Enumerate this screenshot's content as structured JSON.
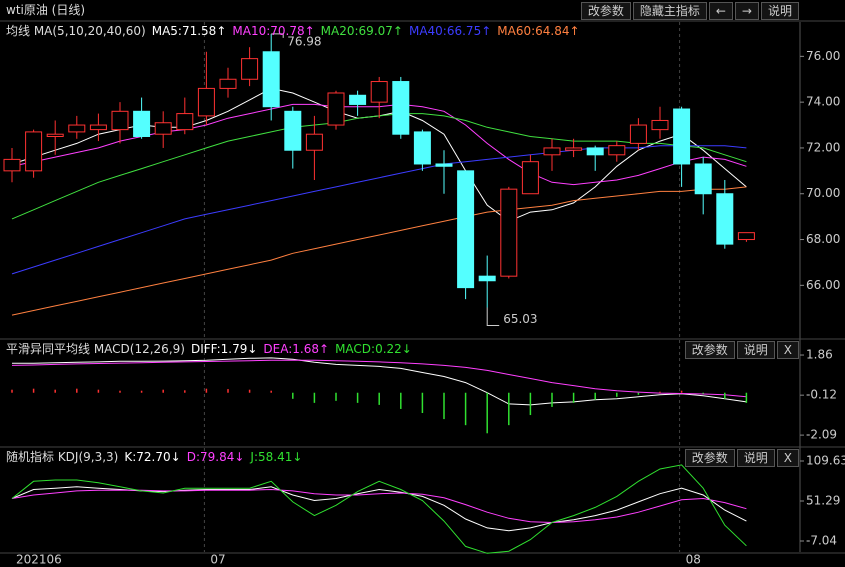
{
  "toolbar": {
    "buttons": [
      "改参数",
      "隐藏主指标",
      "←",
      "→",
      "说明"
    ]
  },
  "chart_data": [
    {
      "type": "candlestick",
      "title": "wti原油 (日线)",
      "indicator": "均线 MA(5,10,20,40,60)",
      "categories": [
        "202106",
        null,
        null,
        null,
        null,
        null,
        null,
        null,
        null,
        "07",
        null,
        null,
        null,
        null,
        null,
        null,
        null,
        null,
        null,
        null,
        null,
        null,
        null,
        null,
        null,
        null,
        null,
        null,
        null,
        null,
        null,
        "08",
        null,
        null,
        null
      ],
      "open": [
        71.0,
        71.0,
        72.5,
        72.7,
        72.8,
        72.8,
        73.6,
        72.6,
        72.8,
        73.4,
        74.6,
        75.0,
        76.2,
        73.6,
        71.9,
        73.0,
        74.3,
        74.0,
        74.9,
        72.7,
        71.3,
        71.0,
        66.4,
        66.4,
        70.0,
        71.7,
        71.9,
        72.0,
        71.7,
        72.2,
        72.8,
        73.7,
        71.3,
        70.0,
        68.0
      ],
      "high": [
        72.0,
        72.8,
        73.2,
        73.4,
        73.5,
        74.0,
        74.2,
        73.6,
        74.2,
        76.2,
        75.5,
        76.4,
        76.98,
        73.8,
        73.4,
        74.5,
        74.5,
        75.1,
        75.1,
        72.8,
        71.9,
        71.0,
        67.3,
        70.3,
        71.7,
        72.4,
        72.4,
        72.1,
        72.3,
        73.3,
        73.8,
        73.8,
        71.6,
        70.6,
        68.3
      ],
      "low": [
        70.5,
        70.7,
        71.7,
        72.4,
        72.3,
        72.2,
        72.4,
        72.0,
        72.6,
        73.0,
        74.2,
        74.7,
        73.2,
        71.1,
        70.6,
        72.8,
        73.4,
        73.3,
        72.4,
        71.0,
        70.0,
        65.4,
        65.03,
        66.3,
        70.0,
        71.0,
        71.6,
        71.0,
        71.4,
        71.9,
        72.4,
        70.3,
        69.1,
        67.6,
        67.9
      ],
      "close": [
        71.5,
        72.7,
        72.6,
        73.0,
        73.0,
        73.6,
        72.5,
        73.1,
        73.5,
        74.6,
        75.0,
        75.9,
        73.8,
        71.9,
        72.6,
        74.4,
        73.9,
        74.9,
        72.6,
        71.3,
        71.2,
        65.9,
        66.2,
        70.2,
        71.4,
        72.0,
        72.0,
        71.7,
        72.1,
        73.0,
        73.2,
        71.3,
        70.0,
        67.8,
        68.3
      ],
      "up_color": "#ff3232",
      "down_color": "#54ffff",
      "ylim": [
        63.7,
        77.5
      ],
      "yticks": [
        {
          "value": 66,
          "label": "66.00"
        },
        {
          "value": 68,
          "label": "68.00"
        },
        {
          "value": 70,
          "label": "70.00"
        },
        {
          "value": 72,
          "label": "72.00"
        },
        {
          "value": 74,
          "label": "74.00"
        },
        {
          "value": 76,
          "label": "76.00"
        }
      ],
      "series": [
        {
          "name": "MA5:71.58↑",
          "color": "#ffffff",
          "values": [
            71.3,
            71.6,
            71.9,
            72.2,
            72.6,
            72.8,
            73.0,
            72.9,
            72.9,
            73.2,
            73.6,
            74.1,
            74.6,
            74.4,
            74.0,
            73.6,
            73.3,
            73.4,
            73.6,
            73.2,
            72.6,
            71.0,
            69.5,
            68.8,
            69.2,
            69.3,
            69.6,
            70.3,
            71.2,
            71.9,
            72.3,
            72.6,
            71.9,
            71.1,
            70.3
          ]
        },
        {
          "name": "MA10:70.78↑",
          "color": "#ff40ff",
          "values": [
            71.2,
            71.4,
            71.6,
            71.8,
            72.0,
            72.3,
            72.5,
            72.7,
            72.8,
            73.0,
            73.3,
            73.5,
            73.7,
            73.9,
            73.9,
            73.8,
            73.8,
            73.8,
            73.9,
            73.8,
            73.6,
            73.0,
            72.2,
            71.5,
            70.9,
            70.5,
            70.4,
            70.5,
            70.6,
            70.8,
            71.1,
            71.4,
            71.6,
            71.5,
            71.2
          ]
        },
        {
          "name": "MA20:69.07↑",
          "color": "#40e040",
          "values": [
            68.9,
            69.3,
            69.7,
            70.1,
            70.5,
            70.8,
            71.1,
            71.4,
            71.7,
            72.0,
            72.3,
            72.5,
            72.7,
            72.9,
            73.0,
            73.1,
            73.3,
            73.4,
            73.5,
            73.5,
            73.4,
            73.2,
            72.9,
            72.7,
            72.5,
            72.4,
            72.3,
            72.3,
            72.3,
            72.2,
            72.2,
            72.1,
            72.0,
            71.7,
            71.4
          ]
        },
        {
          "name": "MA40:66.75↑",
          "color": "#3c3cff",
          "values": [
            66.5,
            66.8,
            67.1,
            67.4,
            67.7,
            68.0,
            68.3,
            68.6,
            68.9,
            69.1,
            69.3,
            69.5,
            69.7,
            69.9,
            70.1,
            70.3,
            70.5,
            70.7,
            70.9,
            71.1,
            71.3,
            71.4,
            71.5,
            71.6,
            71.7,
            71.8,
            71.9,
            72.0,
            72.0,
            72.0,
            72.1,
            72.1,
            72.1,
            72.1,
            72.0
          ]
        },
        {
          "name": "MA60:64.84↑",
          "color": "#ff8040",
          "values": [
            64.7,
            64.9,
            65.1,
            65.3,
            65.5,
            65.7,
            65.9,
            66.1,
            66.3,
            66.5,
            66.7,
            66.9,
            67.1,
            67.4,
            67.6,
            67.8,
            68.0,
            68.2,
            68.4,
            68.6,
            68.8,
            69.0,
            69.2,
            69.3,
            69.4,
            69.5,
            69.7,
            69.8,
            69.9,
            70.0,
            70.1,
            70.1,
            70.2,
            70.2,
            70.3
          ]
        }
      ]
    },
    {
      "type": "macd",
      "title": "平滑异同平均线 MACD(12,26,9)",
      "buttons": [
        "改参数",
        "说明",
        "X"
      ],
      "up_color": "#ff3232",
      "down_color": "#30e030",
      "ylim": [
        -2.43,
        1.96
      ],
      "yticks": [
        1.86,
        -0.12,
        -2.09
      ],
      "series": [
        {
          "name": "DIFF:1.79↓",
          "color": "#ffffff",
          "values": [
            1.45,
            1.45,
            1.48,
            1.5,
            1.52,
            1.55,
            1.55,
            1.56,
            1.58,
            1.6,
            1.65,
            1.7,
            1.72,
            1.65,
            1.5,
            1.4,
            1.35,
            1.3,
            1.2,
            1.0,
            0.8,
            0.5,
            0.0,
            -0.55,
            -0.6,
            -0.5,
            -0.45,
            -0.35,
            -0.3,
            -0.2,
            -0.1,
            -0.05,
            -0.15,
            -0.3,
            -0.45
          ]
        },
        {
          "name": "DEA:1.68↑",
          "color": "#ff40ff",
          "values": [
            1.35,
            1.37,
            1.4,
            1.42,
            1.44,
            1.46,
            1.48,
            1.5,
            1.52,
            1.54,
            1.56,
            1.58,
            1.6,
            1.6,
            1.6,
            1.58,
            1.55,
            1.52,
            1.48,
            1.42,
            1.35,
            1.25,
            1.1,
            0.9,
            0.7,
            0.5,
            0.35,
            0.2,
            0.1,
            0.03,
            -0.02,
            -0.04,
            -0.06,
            -0.1,
            -0.2
          ]
        },
        {
          "name": "MACD:0.22↓",
          "color": "#30e030",
          "type": "bar",
          "values": [
            0.15,
            0.2,
            0.15,
            0.2,
            0.15,
            0.1,
            0.1,
            0.15,
            0.12,
            0.2,
            0.18,
            0.15,
            0.1,
            -0.3,
            -0.5,
            -0.4,
            -0.5,
            -0.6,
            -0.8,
            -1.0,
            -1.3,
            -1.6,
            -2.0,
            -1.6,
            -1.1,
            -0.7,
            -0.5,
            -0.35,
            -0.2,
            -0.1,
            0.05,
            0.1,
            -0.05,
            -0.3,
            -0.5
          ]
        }
      ]
    },
    {
      "type": "kdj",
      "title": "随机指标 KDJ(9,3,3)",
      "buttons": [
        "改参数",
        "说明",
        "X"
      ],
      "ylim": [
        -23.1,
        118.4
      ],
      "yticks": [
        109.63,
        51.29,
        -7.04
      ],
      "series": [
        {
          "name": "K:72.70↓",
          "color": "#ffffff",
          "values": [
            55,
            68,
            70,
            72,
            70,
            68,
            66,
            65,
            67,
            68,
            68,
            68,
            72,
            60,
            52,
            55,
            62,
            68,
            64,
            58,
            45,
            25,
            12,
            8,
            12,
            20,
            24,
            30,
            38,
            50,
            62,
            70,
            60,
            38,
            22
          ]
        },
        {
          "name": "D:79.84↓",
          "color": "#ff40ff",
          "values": [
            55,
            60,
            63,
            66,
            67,
            67,
            67,
            66,
            66,
            67,
            67,
            67,
            68,
            66,
            62,
            60,
            60,
            62,
            63,
            61,
            56,
            46,
            35,
            26,
            21,
            20,
            21,
            24,
            28,
            35,
            44,
            53,
            55,
            49,
            40
          ]
        },
        {
          "name": "J:58.41↓",
          "color": "#30e030",
          "values": [
            55,
            80,
            82,
            82,
            78,
            72,
            66,
            63,
            70,
            70,
            70,
            70,
            80,
            50,
            30,
            45,
            65,
            80,
            68,
            52,
            22,
            -15,
            -25,
            -22,
            -5,
            20,
            30,
            42,
            58,
            80,
            98,
            104,
            70,
            16,
            -14
          ]
        }
      ]
    }
  ]
}
